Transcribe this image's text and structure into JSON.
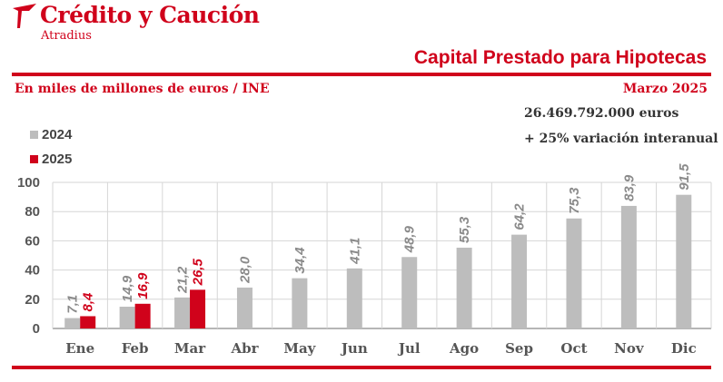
{
  "header": {
    "brand_name": "Crédito y Caución",
    "brand_sub": "Atradius",
    "title": "Capital Prestado para Hipotecas",
    "units": "En miles de millones de euros / INE",
    "period": "Marzo 2025",
    "total": "26.469.792.000  euros",
    "variation": "+ 25% variación interanual"
  },
  "colors": {
    "brand_red": "#d0021b",
    "series_2024": "#bdbdbd",
    "series_2025": "#d0021b",
    "label_2024": "#8a8a8a",
    "label_2025": "#d0021b"
  },
  "chart_data": {
    "type": "bar",
    "title": "Capital Prestado para Hipotecas",
    "xlabel": "",
    "ylabel": "",
    "ylim": [
      0,
      100
    ],
    "yticks": [
      "0",
      "20",
      "40",
      "60",
      "80",
      "100"
    ],
    "grid": true,
    "legend_position": "top-left",
    "categories": [
      "Ene",
      "Feb",
      "Mar",
      "Abr",
      "May",
      "Jun",
      "Jul",
      "Ago",
      "Sep",
      "Oct",
      "Nov",
      "Dic"
    ],
    "series": [
      {
        "name": "2024",
        "values": [
          7.1,
          14.9,
          21.2,
          28.0,
          34.4,
          41.1,
          48.9,
          55.3,
          64.2,
          75.3,
          83.9,
          91.5
        ],
        "labels": [
          "7,1",
          "14,9",
          "21,2",
          "28,0",
          "34,4",
          "41,1",
          "48,9",
          "55,3",
          "64,2",
          "75,3",
          "83,9",
          "91,5"
        ]
      },
      {
        "name": "2025",
        "values": [
          8.4,
          16.9,
          26.5,
          null,
          null,
          null,
          null,
          null,
          null,
          null,
          null,
          null
        ],
        "labels": [
          "8,4",
          "16,9",
          "26,5",
          null,
          null,
          null,
          null,
          null,
          null,
          null,
          null,
          null
        ]
      }
    ]
  }
}
